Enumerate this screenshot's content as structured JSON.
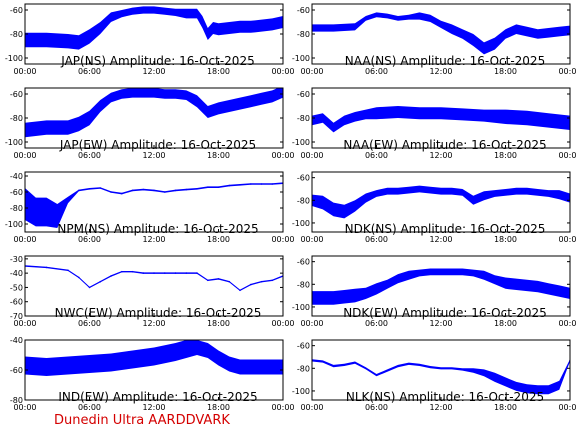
{
  "footer": {
    "label": "Dunedin Ultra AARDDVARK",
    "color": "#d40000"
  },
  "trace_color": "#0000ff",
  "chart_data": [
    {
      "type": "line",
      "title": "JAP(NS) Amplitude: 16-Oct-2025",
      "xticks": [
        "00:00",
        "06:00",
        "12:00",
        "18:00",
        "00:00"
      ],
      "ylim": [
        -105,
        -55
      ],
      "yticks": [
        -100,
        -80,
        -60
      ],
      "x": [
        0,
        2,
        4,
        5,
        6,
        7,
        8,
        9,
        10,
        11,
        12,
        13,
        14,
        15,
        16,
        16.5,
        17,
        17.5,
        18,
        19,
        20,
        21,
        22,
        23,
        24
      ],
      "series": [
        {
          "values": [
            -85,
            -85,
            -86,
            -87,
            -82,
            -75,
            -66,
            -63,
            -61,
            -60,
            -60,
            -61,
            -62,
            -63,
            -63,
            -70,
            -80,
            -75,
            -76,
            -75,
            -74,
            -74,
            -73,
            -72,
            -70
          ],
          "spread": [
            6,
            6,
            6,
            6,
            6,
            5,
            4,
            3,
            3,
            3,
            3,
            3,
            3,
            4,
            4,
            5,
            5,
            5,
            5,
            5,
            5,
            5,
            5,
            5,
            5
          ]
        }
      ]
    },
    {
      "type": "line",
      "title": "NAA(NS) Amplitude: 16-Oct-2025",
      "xticks": [
        "00:00",
        "06:00",
        "12:00",
        "18:00",
        "00:00"
      ],
      "ylim": [
        -105,
        -55
      ],
      "yticks": [
        -100,
        -80,
        -60
      ],
      "x": [
        0,
        2,
        4,
        5,
        6,
        7,
        8,
        9,
        10,
        11,
        12,
        13,
        14,
        15,
        16,
        17,
        18,
        19,
        20,
        21,
        22,
        23,
        24
      ],
      "series": [
        {
          "values": [
            -75,
            -75,
            -74,
            -67,
            -64,
            -65,
            -67,
            -66,
            -65,
            -67,
            -72,
            -76,
            -80,
            -85,
            -92,
            -88,
            -80,
            -76,
            -78,
            -80,
            -79,
            -78,
            -77
          ],
          "spread": [
            3,
            3,
            3,
            2,
            2,
            2,
            2,
            2,
            3,
            3,
            3,
            4,
            4,
            5,
            5,
            5,
            4,
            4,
            4,
            4,
            4,
            4,
            4
          ]
        }
      ]
    },
    {
      "type": "line",
      "title": "JAP(EW) Amplitude: 16-Oct-2025",
      "xticks": [
        "00:00",
        "06:00",
        "12:00",
        "18:00",
        "00:00"
      ],
      "ylim": [
        -105,
        -55
      ],
      "yticks": [
        -100,
        -80,
        -60
      ],
      "x": [
        0,
        2,
        4,
        5,
        6,
        7,
        8,
        9,
        10,
        11,
        12,
        13,
        14,
        15,
        16,
        17,
        18,
        19,
        20,
        21,
        22,
        23,
        24
      ],
      "series": [
        {
          "values": [
            -90,
            -88,
            -88,
            -85,
            -80,
            -70,
            -63,
            -60,
            -59,
            -59,
            -59,
            -60,
            -60,
            -61,
            -66,
            -75,
            -72,
            -70,
            -68,
            -66,
            -64,
            -62,
            -58
          ],
          "spread": [
            6,
            6,
            6,
            6,
            6,
            5,
            4,
            4,
            4,
            4,
            4,
            4,
            4,
            4,
            5,
            5,
            5,
            5,
            5,
            5,
            5,
            5,
            5
          ]
        }
      ]
    },
    {
      "type": "line",
      "title": "NAA(EW) Amplitude: 16-Oct-2025",
      "xticks": [
        "00:00",
        "06:00",
        "12:00",
        "18:00",
        "00:00"
      ],
      "ylim": [
        -105,
        -55
      ],
      "yticks": [
        -100,
        -80,
        -60
      ],
      "x": [
        0,
        1,
        2,
        3,
        4,
        5,
        6,
        8,
        10,
        12,
        14,
        16,
        18,
        20,
        22,
        24
      ],
      "series": [
        {
          "values": [
            -82,
            -80,
            -88,
            -82,
            -79,
            -77,
            -76,
            -75,
            -76,
            -76,
            -77,
            -78,
            -79,
            -80,
            -82,
            -84
          ],
          "spread": [
            4,
            4,
            4,
            4,
            4,
            4,
            5,
            5,
            5,
            5,
            5,
            5,
            6,
            6,
            6,
            6
          ]
        }
      ]
    },
    {
      "type": "line",
      "title": "NPM(NS) Amplitude: 16-Oct-2025",
      "xticks": [
        "00:00",
        "06:00",
        "12:00",
        "18:00",
        "00:00"
      ],
      "ylim": [
        -110,
        -35
      ],
      "yticks": [
        -100,
        -80,
        -60,
        -40
      ],
      "x": [
        0,
        1,
        2,
        3,
        4,
        5,
        6,
        7,
        8,
        9,
        10,
        11,
        12,
        13,
        14,
        15,
        16,
        17,
        18,
        19,
        20,
        21,
        22,
        23,
        24
      ],
      "series": [
        {
          "values": [
            -75,
            -85,
            -85,
            -90,
            -70,
            -58,
            -56,
            -55,
            -60,
            -62,
            -58,
            -57,
            -58,
            -60,
            -58,
            -57,
            -56,
            -54,
            -54,
            -52,
            -51,
            -50,
            -50,
            -50,
            -49
          ],
          "spread": [
            20,
            18,
            18,
            15,
            4,
            1,
            1,
            1,
            1,
            1,
            1,
            1,
            1,
            1,
            1,
            1,
            1,
            1,
            1,
            1,
            1,
            1,
            1,
            1,
            1
          ]
        }
      ]
    },
    {
      "type": "line",
      "title": "NDK(NS) Amplitude: 16-Oct-2025",
      "xticks": [
        "00:00",
        "06:00",
        "12:00",
        "18:00",
        "00:00"
      ],
      "ylim": [
        -108,
        -55
      ],
      "yticks": [
        -100,
        -80,
        -60
      ],
      "x": [
        0,
        1,
        2,
        3,
        4,
        5,
        6,
        7,
        8,
        9,
        10,
        11,
        12,
        13,
        14,
        15,
        16,
        17,
        18,
        19,
        20,
        21,
        22,
        23,
        24
      ],
      "series": [
        {
          "values": [
            -80,
            -82,
            -88,
            -90,
            -85,
            -78,
            -74,
            -72,
            -72,
            -71,
            -70,
            -71,
            -72,
            -72,
            -73,
            -80,
            -76,
            -74,
            -73,
            -72,
            -72,
            -73,
            -74,
            -75,
            -78
          ],
          "spread": [
            5,
            6,
            6,
            6,
            5,
            4,
            3,
            3,
            3,
            3,
            3,
            3,
            3,
            3,
            3,
            4,
            4,
            3,
            3,
            3,
            3,
            3,
            3,
            4,
            4
          ]
        }
      ]
    },
    {
      "type": "line",
      "title": "NWC(EW) Amplitude: 16-Oct-2025",
      "xticks": [
        "00:00",
        "06:00",
        "12:00",
        "18:00",
        "00:00"
      ],
      "ylim": [
        -70,
        -28
      ],
      "yticks": [
        -70,
        -60,
        -50,
        -40,
        -30
      ],
      "x": [
        0,
        2,
        4,
        5,
        6,
        7,
        8,
        9,
        10,
        11,
        12,
        13,
        14,
        15,
        16,
        17,
        18,
        19,
        20,
        21,
        22,
        23,
        24
      ],
      "series": [
        {
          "values": [
            -35,
            -36,
            -38,
            -43,
            -50,
            -46,
            -42,
            -39,
            -39,
            -40,
            -40,
            -40,
            -40,
            -40,
            -40,
            -45,
            -44,
            -46,
            -52,
            -48,
            -46,
            -45,
            -42
          ],
          "spread": [
            0.5,
            0.5,
            0.5,
            0.5,
            0.5,
            0.5,
            0.5,
            0.5,
            0.5,
            0.5,
            0.5,
            0.5,
            0.5,
            0.5,
            0.5,
            0.5,
            0.5,
            0.5,
            0.5,
            0.5,
            0.5,
            0.5,
            0.5
          ]
        }
      ]
    },
    {
      "type": "line",
      "title": "NDK(EW) Amplitude: 16-Oct-2025",
      "xticks": [
        "00:00",
        "06:00",
        "12:00",
        "18:00",
        "00:00"
      ],
      "ylim": [
        -108,
        -55
      ],
      "yticks": [
        -100,
        -80,
        -60
      ],
      "x": [
        0,
        1,
        2,
        3,
        4,
        5,
        6,
        7,
        8,
        9,
        10,
        11,
        12,
        13,
        14,
        15,
        16,
        17,
        18,
        19,
        20,
        21,
        22,
        23,
        24
      ],
      "series": [
        {
          "values": [
            -92,
            -92,
            -92,
            -91,
            -90,
            -88,
            -84,
            -80,
            -75,
            -72,
            -70,
            -69,
            -69,
            -69,
            -69,
            -70,
            -72,
            -76,
            -79,
            -80,
            -81,
            -82,
            -84,
            -86,
            -88
          ],
          "spread": [
            6,
            6,
            6,
            6,
            6,
            5,
            5,
            4,
            4,
            4,
            3,
            3,
            3,
            3,
            3,
            3,
            4,
            4,
            5,
            5,
            5,
            5,
            5,
            5,
            5
          ]
        }
      ]
    },
    {
      "type": "line",
      "title": "IND(EW) Amplitude: 16-Oct-2025",
      "xticks": [
        "00:00",
        "06:00",
        "12:00",
        "18:00",
        "00:00"
      ],
      "ylim": [
        -80,
        -40
      ],
      "yticks": [
        -80,
        -60,
        -40
      ],
      "x": [
        0,
        2,
        4,
        6,
        8,
        10,
        12,
        14,
        15,
        16,
        17,
        18,
        19,
        20,
        22,
        24
      ],
      "series": [
        {
          "values": [
            -57,
            -58,
            -57,
            -56,
            -55,
            -53,
            -51,
            -48,
            -46,
            -45,
            -47,
            -52,
            -56,
            -58,
            -58,
            -58
          ],
          "spread": [
            6,
            6,
            6,
            6,
            6,
            6,
            6,
            6,
            6,
            5,
            5,
            5,
            5,
            5,
            5,
            5
          ]
        }
      ]
    },
    {
      "type": "line",
      "title": "NLK(NS) Amplitude: 16-Oct-2025",
      "xticks": [
        "00:00",
        "06:00",
        "12:00",
        "18:00",
        "00:00"
      ],
      "ylim": [
        -108,
        -55
      ],
      "yticks": [
        -100,
        -80,
        -60
      ],
      "x": [
        0,
        1,
        2,
        3,
        4,
        5,
        6,
        7,
        8,
        9,
        10,
        11,
        12,
        13,
        14,
        15,
        16,
        17,
        18,
        19,
        20,
        21,
        22,
        23,
        24
      ],
      "series": [
        {
          "values": [
            -73,
            -74,
            -78,
            -77,
            -75,
            -80,
            -86,
            -82,
            -78,
            -76,
            -77,
            -79,
            -80,
            -80,
            -81,
            -82,
            -84,
            -88,
            -92,
            -96,
            -98,
            -99,
            -99,
            -95,
            -73
          ],
          "spread": [
            1,
            1,
            1,
            1,
            1,
            1,
            1,
            1,
            1,
            1,
            1,
            1,
            1,
            1,
            1,
            2,
            3,
            4,
            4,
            4,
            4,
            4,
            4,
            4,
            1
          ]
        }
      ]
    }
  ]
}
